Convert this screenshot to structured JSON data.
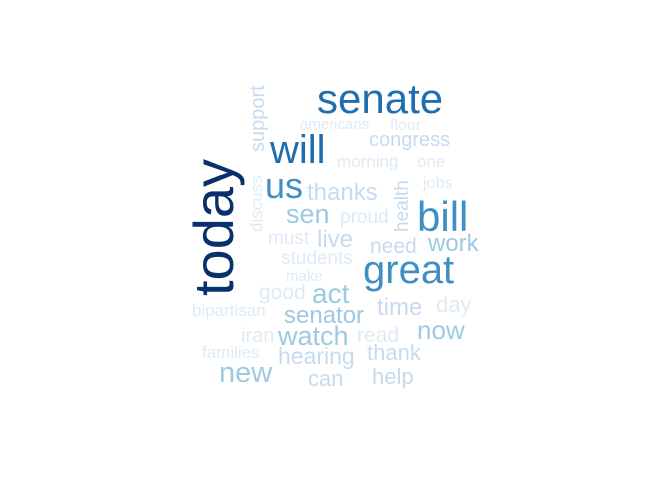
{
  "words": {
    "today": "today",
    "senate": "senate",
    "will": "will",
    "bill": "bill",
    "great": "great",
    "us": "us",
    "sen": "sen",
    "support": "support",
    "americans": "americans",
    "floor": "floor",
    "congress": "congress",
    "morning": "morning",
    "one": "one",
    "thanks": "thanks",
    "health": "health",
    "jobs": "jobs",
    "discuss": "discuss",
    "proud": "proud",
    "must": "must",
    "live": "live",
    "need": "need",
    "work": "work",
    "students": "students",
    "make": "make",
    "good": "good",
    "act": "act",
    "time": "time",
    "day": "day",
    "bipartisan": "bipartisan",
    "senator": "senator",
    "iran": "iran",
    "watch": "watch",
    "read": "read",
    "now": "now",
    "families": "families",
    "hearing": "hearing",
    "thank": "thank",
    "new": "new",
    "can": "can",
    "help": "help"
  },
  "colors": {
    "darkest": "#08306b",
    "dark": "#1f6eb0",
    "mid_dark": "#3f8ec4",
    "mid": "#6aaed6",
    "light": "#9ecae1",
    "lighter": "#c6dbef",
    "lightest": "#deebf7"
  }
}
